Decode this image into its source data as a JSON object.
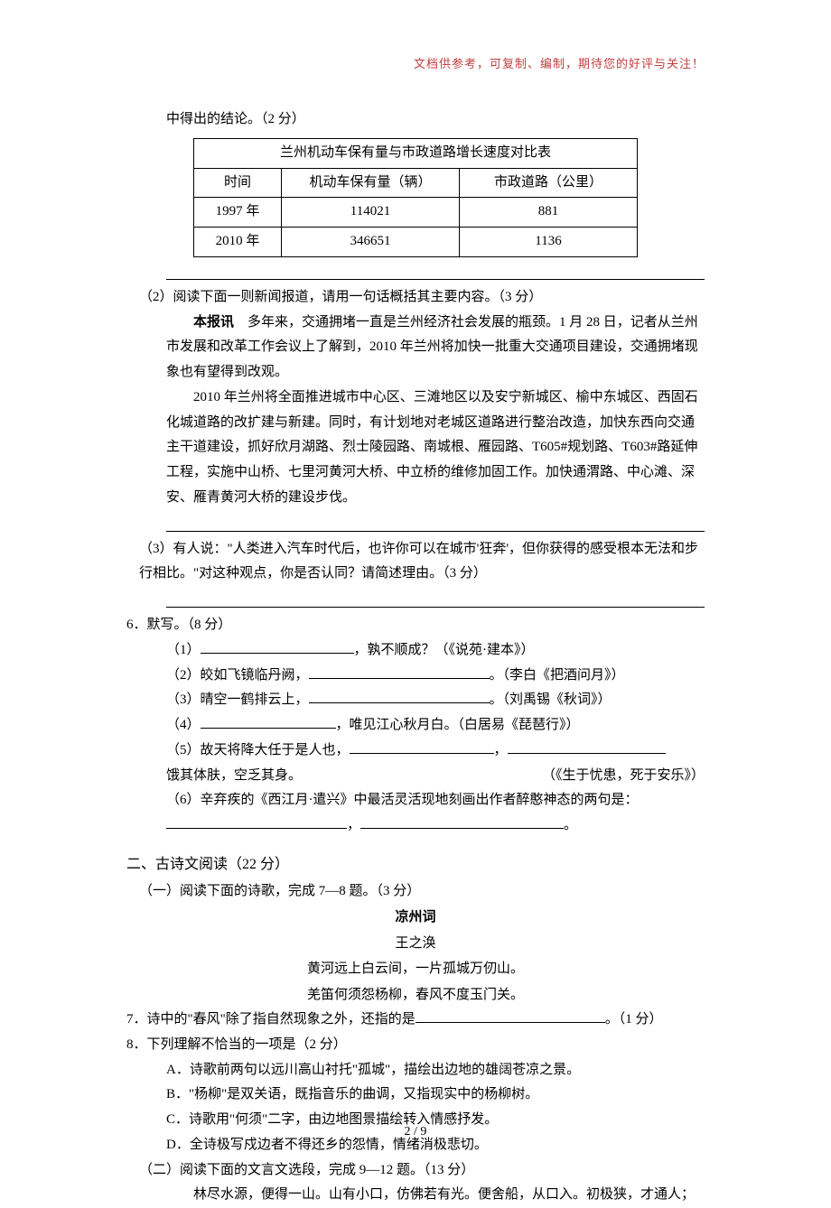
{
  "header_note": "文档供参考，可复制、编制，期待您的好评与关注！",
  "header_note_color": "#bf3f3f",
  "intro_tail": "中得出的结论。（2 分）",
  "table": {
    "title": "兰州机动车保有量与市政道路增长速度对比表",
    "columns": [
      "时间",
      "机动车保有量（辆）",
      "市政道路（公里）"
    ],
    "rows": [
      [
        "1997 年",
        "114021",
        "881"
      ],
      [
        "2010 年",
        "346651",
        "1136"
      ]
    ],
    "col_widths": [
      "80px",
      "180px",
      "180px"
    ],
    "border_color": "#000000"
  },
  "q2_lead": "（2）阅读下面一则新闻报道，请用一句话概括其主要内容。（3 分）",
  "news": {
    "lead_label": "本报讯",
    "p1_rest": "　多年来，交通拥堵一直是兰州经济社会发展的瓶颈。1 月 28 日，记者从兰州市发展和改革工作会议上了解到，2010 年兰州将加快一批重大交通项目建设，交通拥堵现象也有望得到改观。",
    "p2": "2010 年兰州将全面推进城市中心区、三滩地区以及安宁新城区、榆中东城区、西固石化城道路的改扩建与新建。同时，有计划地对老城区道路进行整治改造，加快东西向交通主干道建设，抓好欣月湖路、烈士陵园路、南城根、雁园路、T605#规划路、T603#路延伸工程，实施中山桥、七里河黄河大桥、中立桥的维修加固工作。加快通渭路、中心滩、深安、雁青黄河大桥的建设步伐。"
  },
  "q3": "（3）有人说：\"人类进入汽车时代后，也许你可以在城市'狂奔'，但你获得的感受根本无法和步行相比。\"对这种观点，你是否认同？请简述理由。（3 分）",
  "q6_head": "6．默写。（8 分）",
  "q6_items": {
    "i1_pre": "（1）",
    "i1_post": "，孰不顺成？（《说苑·建本》）",
    "i2_pre": "（2）皎如飞镜临丹阙，",
    "i2_post": "。（李白《把酒问月》）",
    "i3_pre": "（3）晴空一鹤排云上，",
    "i3_post": "。（刘禹锡《秋词》）",
    "i4_pre": "（4）",
    "i4_post": "，唯见江心秋月白。（白居易《琵琶行》）",
    "i5_pre": "（5）故天将降大任于是人也，",
    "i5_mid": "，",
    "i5_line2": "饿其体肤，空乏其身。",
    "i5_src": "（《生于忧患，死于安乐》）",
    "i6_pre": "（6）辛弃疾的《西江月·遣兴》中最活灵活现地刻画出作者醉憨神态的两句是：",
    "i6_mid": "，",
    "i6_end": "。"
  },
  "section2_title": "二、古诗文阅读（22 分）",
  "part1_lead": "（一）阅读下面的诗歌，完成 7—8 题。（3 分）",
  "poem": {
    "title": "凉州词",
    "author": "王之涣",
    "l1": "黄河远上白云间，一片孤城万仞山。",
    "l2": "羌笛何须怨杨柳，春风不度玉门关。"
  },
  "q7_pre": "7．诗中的\"春风\"除了指自然现象之外，还指的是",
  "q7_post": "。（1 分）",
  "q8_head": "8．下列理解不恰当的一项是（2 分）",
  "q8_options": {
    "A": "A．诗歌前两句以远川高山衬托\"孤城\"，描绘出边地的雄阔苍凉之景。",
    "B": "B．\"杨柳\"是双关语，既指音乐的曲调，又指现实中的杨柳树。",
    "C": "C．诗歌用\"何须\"二字，由边地图景描绘转入情感抒发。",
    "D": "D．全诗极写戍边者不得还乡的怨情，情绪消极悲切。"
  },
  "part2_lead": "（二）阅读下面的文言文选段，完成 9—12 题。（13 分）",
  "classical": "林尽水源，便得一山。山有小口，仿佛若有光。便舍船，从口入。初极狭，才通人；",
  "footer": "2 / 9",
  "lengths": {
    "u_long": "200px",
    "u_med": "170px",
    "u_short": "150px",
    "u_q7": "210px",
    "u_i1": "170px",
    "u_i4": "150px",
    "u_i5a": "160px",
    "u_i5b": "175px",
    "u_i6a": "200px",
    "u_i6b": "225px"
  }
}
